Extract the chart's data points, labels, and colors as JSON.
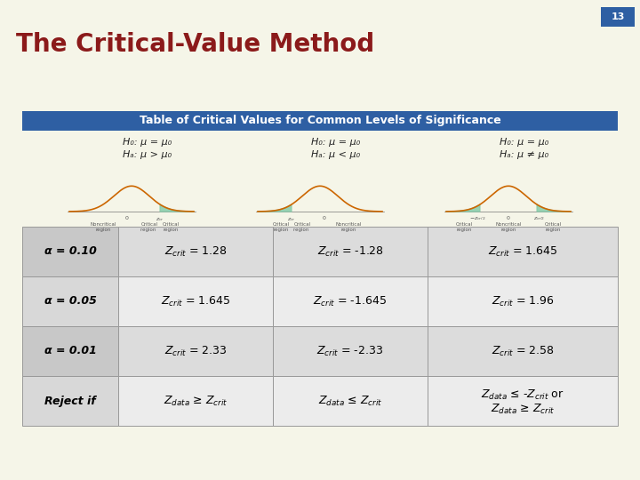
{
  "title": "The Critical-Value Method",
  "title_color": "#8B1A1A",
  "slide_number": "13",
  "slide_number_bg": "#2E5FA3",
  "bg_color": "#F5F5E8",
  "table_header": "Table of Critical Values for Common Levels of Significance",
  "table_header_bg": "#2E5FA3",
  "table_header_color": "#FFFFFF",
  "curve_color": "#CC6600",
  "shade_color": "#88CCAA",
  "hypotheses": [
    "H₀: μ = μ₀\nHₐ: μ > μ₀",
    "H₀: μ = μ₀\nHₐ: μ < μ₀",
    "H₀: μ = μ₀\nHₐ: μ ≠ μ₀"
  ],
  "shade_sides": [
    "right",
    "left",
    "both"
  ],
  "row_labels": [
    "α = 0.10",
    "α = 0.05",
    "α = 0.01",
    "Reject if"
  ],
  "col1_vals": [
    "Z_crit = 1.28",
    "Z_crit = 1.645",
    "Z_crit = 2.33",
    "Z_data >= Z_crit"
  ],
  "col2_vals": [
    "Z_crit = -1.28",
    "Z_crit = -1.645",
    "Z_crit = -2.33",
    "Z_data <= Z_crit"
  ],
  "col3_vals": [
    "Z_crit = 1.645",
    "Z_crit = 1.96",
    "Z_crit = 2.58",
    "Z_data <= -Z_crit or\nZ_data >= Z_crit"
  ],
  "row_bg_label": [
    "#C8C8C8",
    "#D8D8D8",
    "#C8C8C8",
    "#D8D8D8"
  ],
  "row_bg_data": [
    "#DCDCDC",
    "#ECECEC",
    "#DCDCDC",
    "#ECECEC"
  ],
  "border_color": "#999999",
  "title_fontsize": 20,
  "header_fontsize": 9,
  "hyp_fontsize": 8,
  "table_fontsize": 9,
  "table_label_fontsize": 9
}
